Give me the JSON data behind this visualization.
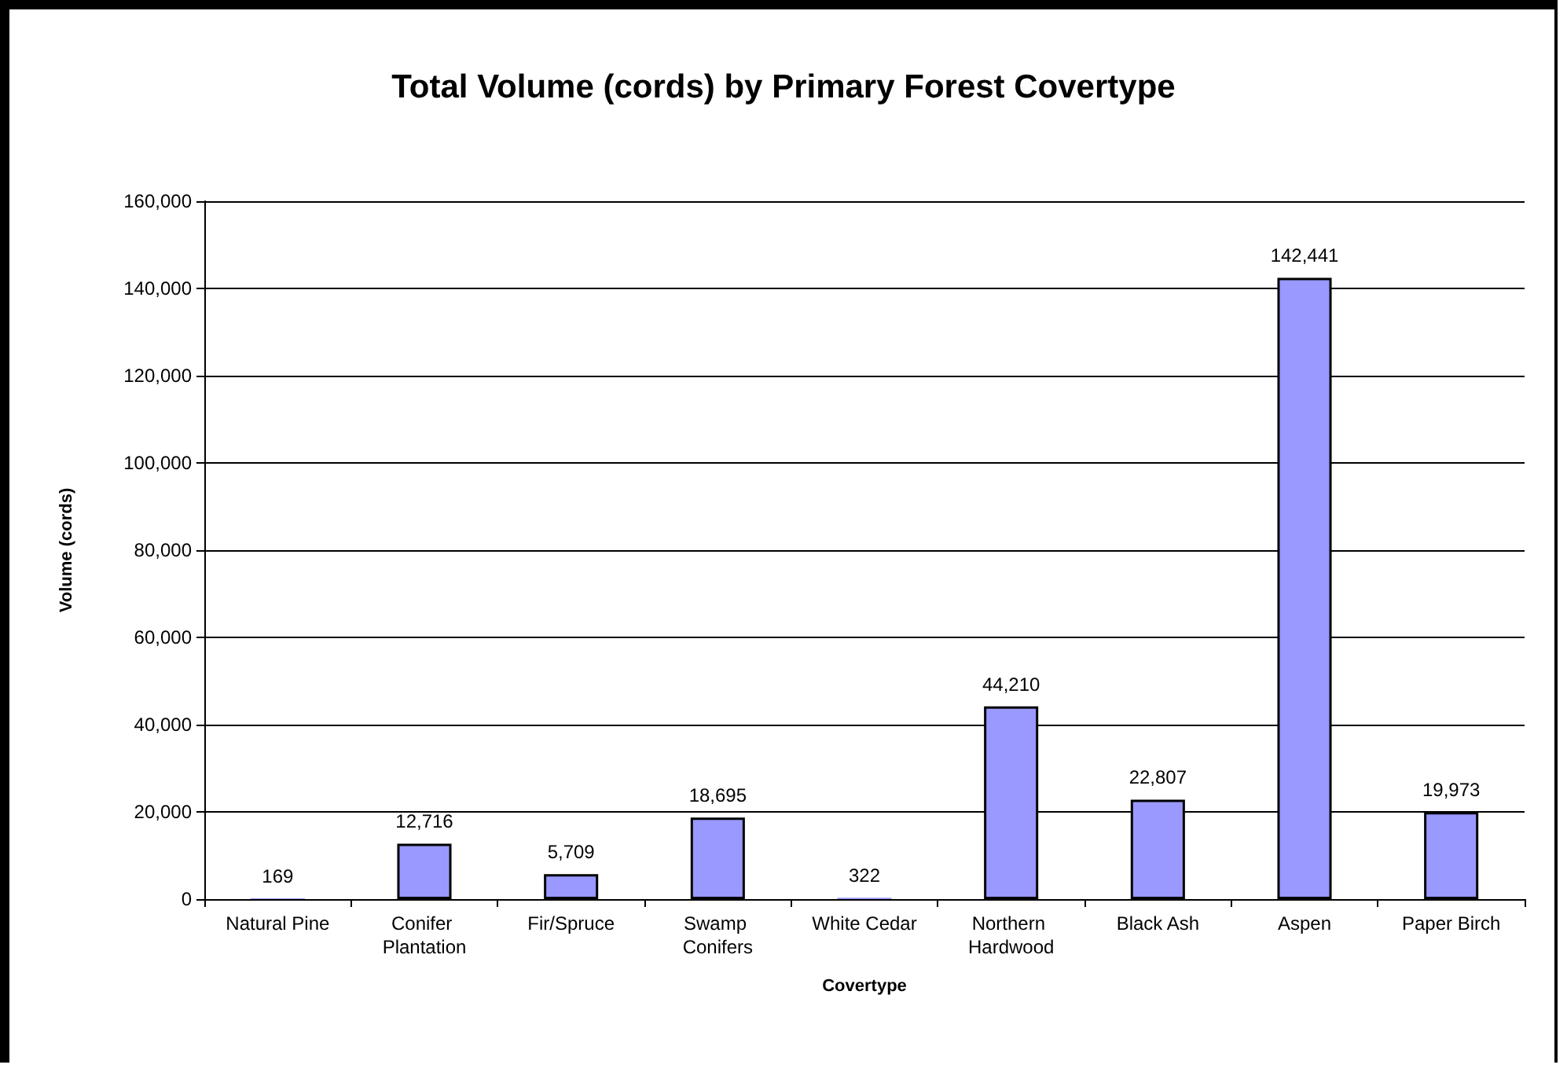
{
  "chart_data": {
    "type": "bar",
    "title": "Total Volume (cords) by Primary Forest Covertype",
    "xlabel": "Covertype",
    "ylabel": "Volume (cords)",
    "categories": [
      "Natural Pine",
      "Conifer Plantation",
      "Fir/Spruce",
      "Swamp Conifers",
      "White Cedar",
      "Northern Hardwood",
      "Black Ash",
      "Aspen",
      "Paper Birch"
    ],
    "values": [
      169,
      12716,
      5709,
      18695,
      322,
      44210,
      22807,
      142441,
      19973
    ],
    "value_labels": [
      "169",
      "12,716",
      "5,709",
      "18,695",
      "322",
      "44,210",
      "22,807",
      "142,441",
      "19,973"
    ],
    "color": "#9999ff",
    "ylim": [
      0,
      160000
    ],
    "yticks": [
      {
        "value": 0,
        "label": "0"
      },
      {
        "value": 20000,
        "label": "20,000"
      },
      {
        "value": 40000,
        "label": "40,000"
      },
      {
        "value": 60000,
        "label": "60,000"
      },
      {
        "value": 80000,
        "label": "80,000"
      },
      {
        "value": 100000,
        "label": "100,000"
      },
      {
        "value": 120000,
        "label": "120,000"
      },
      {
        "value": 140000,
        "label": "140,000"
      },
      {
        "value": 160000,
        "label": "160,000"
      }
    ],
    "grid": "y"
  }
}
